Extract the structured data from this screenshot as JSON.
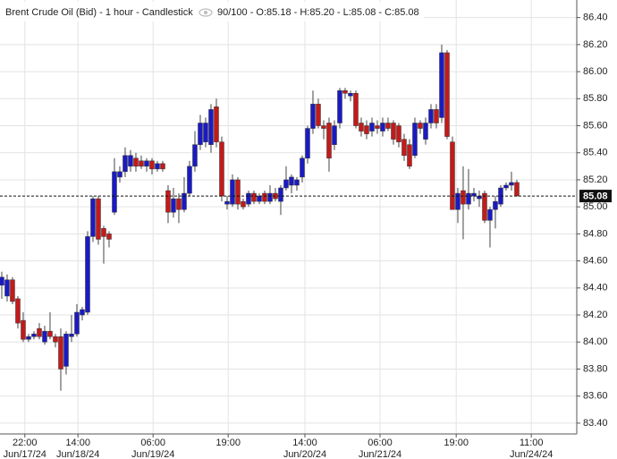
{
  "chart_data": {
    "type": "candlestick",
    "title": "Brent Crude Oil (Bid) - 1 hour - Candlestick",
    "subtitle": "90/100 - O:85.18 - H:85.20 - L:85.08 - C:85.08",
    "up_color": "#1a1ac4",
    "down_color": "#c41a1a",
    "grid": true,
    "last_price": 85.08,
    "ylim": [
      83.32,
      86.53
    ],
    "yticks": [
      {
        "value": 83.4,
        "label": "83.40"
      },
      {
        "value": 83.6,
        "label": "83.60"
      },
      {
        "value": 83.8,
        "label": "83.80"
      },
      {
        "value": 84.0,
        "label": "84.00"
      },
      {
        "value": 84.2,
        "label": "84.20"
      },
      {
        "value": 84.4,
        "label": "84.40"
      },
      {
        "value": 84.6,
        "label": "84.60"
      },
      {
        "value": 84.8,
        "label": "84.80"
      },
      {
        "value": 85.0,
        "label": "85.00"
      },
      {
        "value": 85.2,
        "label": "85.20"
      },
      {
        "value": 85.4,
        "label": "85.40"
      },
      {
        "value": 85.6,
        "label": "85.60"
      },
      {
        "value": 85.8,
        "label": "85.80"
      },
      {
        "value": 86.0,
        "label": "86.00"
      },
      {
        "value": 86.2,
        "label": "86.20"
      },
      {
        "value": 86.4,
        "label": "86.40"
      }
    ],
    "xlim": [
      -0.33,
      107.17
    ],
    "xticks": [
      {
        "value": 4.3,
        "label": "22:00",
        "date": "Jun/17/24"
      },
      {
        "value": 14.2,
        "label": "14:00",
        "date": "Jun/18/24"
      },
      {
        "value": 28.2,
        "label": "06:00",
        "date": "Jun/19/24"
      },
      {
        "value": 42.2,
        "label": "19:00"
      },
      {
        "value": 56.5,
        "label": "14:00",
        "date": "Jun/20/24"
      },
      {
        "value": 70.5,
        "label": "06:00",
        "date": "Jun/21/24"
      },
      {
        "value": 84.7,
        "label": "19:00"
      },
      {
        "value": 98.7,
        "label": "11:00",
        "date": "Jun/24/24"
      }
    ],
    "candles": [
      {
        "open": 84.42,
        "high": 84.52,
        "low": 84.32,
        "close": 84.48
      },
      {
        "open": 84.34,
        "high": 84.5,
        "low": 84.3,
        "close": 84.46
      },
      {
        "open": 84.46,
        "high": 84.48,
        "low": 84.28,
        "close": 84.3
      },
      {
        "open": 84.32,
        "high": 84.34,
        "low": 84.1,
        "close": 84.14
      },
      {
        "open": 84.16,
        "high": 84.22,
        "low": 84.0,
        "close": 84.02
      },
      {
        "open": 84.02,
        "high": 84.06,
        "low": 84.0,
        "close": 84.04
      },
      {
        "open": 84.04,
        "high": 84.08,
        "low": 84.02,
        "close": 84.06
      },
      {
        "open": 84.1,
        "high": 84.14,
        "low": 84.02,
        "close": 84.04
      },
      {
        "open": 84.0,
        "high": 84.12,
        "low": 83.98,
        "close": 84.08
      },
      {
        "open": 84.08,
        "high": 84.22,
        "low": 84.02,
        "close": 84.04
      },
      {
        "open": 84.04,
        "high": 84.06,
        "low": 83.96,
        "close": 84.0
      },
      {
        "open": 84.04,
        "high": 84.1,
        "low": 83.64,
        "close": 83.8
      },
      {
        "open": 83.82,
        "high": 84.08,
        "low": 83.76,
        "close": 84.06
      },
      {
        "open": 84.04,
        "high": 84.2,
        "low": 84.0,
        "close": 84.06
      },
      {
        "open": 84.06,
        "high": 84.28,
        "low": 84.04,
        "close": 84.22
      },
      {
        "open": 84.2,
        "high": 84.26,
        "low": 84.16,
        "close": 84.24
      },
      {
        "open": 84.22,
        "high": 84.82,
        "low": 84.2,
        "close": 84.78
      },
      {
        "open": 84.78,
        "high": 85.08,
        "low": 84.74,
        "close": 85.06
      },
      {
        "open": 85.06,
        "high": 85.08,
        "low": 84.72,
        "close": 84.76
      },
      {
        "open": 84.84,
        "high": 84.86,
        "low": 84.58,
        "close": 84.78
      },
      {
        "open": 84.8,
        "high": 84.82,
        "low": 84.7,
        "close": 84.76
      },
      {
        "open": 84.96,
        "high": 85.36,
        "low": 84.94,
        "close": 85.26
      },
      {
        "open": 85.22,
        "high": 85.3,
        "low": 85.18,
        "close": 85.26
      },
      {
        "open": 85.26,
        "high": 85.44,
        "low": 85.22,
        "close": 85.38
      },
      {
        "open": 85.3,
        "high": 85.42,
        "low": 85.26,
        "close": 85.38
      },
      {
        "open": 85.36,
        "high": 85.4,
        "low": 85.26,
        "close": 85.3
      },
      {
        "open": 85.34,
        "high": 85.38,
        "low": 85.28,
        "close": 85.3
      },
      {
        "open": 85.3,
        "high": 85.36,
        "low": 85.26,
        "close": 85.34
      },
      {
        "open": 85.34,
        "high": 85.36,
        "low": 85.24,
        "close": 85.28
      },
      {
        "open": 85.28,
        "high": 85.34,
        "low": 85.26,
        "close": 85.32
      },
      {
        "open": 85.32,
        "high": 85.34,
        "low": 85.26,
        "close": 85.28
      },
      {
        "open": 85.12,
        "high": 85.16,
        "low": 84.88,
        "close": 84.96
      },
      {
        "open": 84.96,
        "high": 85.14,
        "low": 84.92,
        "close": 85.06
      },
      {
        "open": 85.06,
        "high": 85.1,
        "low": 84.88,
        "close": 84.98
      },
      {
        "open": 84.98,
        "high": 85.22,
        "low": 84.96,
        "close": 85.1
      },
      {
        "open": 85.1,
        "high": 85.34,
        "low": 85.08,
        "close": 85.3
      },
      {
        "open": 85.3,
        "high": 85.56,
        "low": 85.26,
        "close": 85.46
      },
      {
        "open": 85.46,
        "high": 85.68,
        "low": 85.42,
        "close": 85.62
      },
      {
        "open": 85.48,
        "high": 85.66,
        "low": 85.44,
        "close": 85.62
      },
      {
        "open": 85.46,
        "high": 85.76,
        "low": 85.4,
        "close": 85.72
      },
      {
        "open": 85.74,
        "high": 85.8,
        "low": 85.44,
        "close": 85.48
      },
      {
        "open": 85.48,
        "high": 85.52,
        "low": 85.04,
        "close": 85.08
      },
      {
        "open": 85.02,
        "high": 85.08,
        "low": 84.98,
        "close": 85.04
      },
      {
        "open": 85.02,
        "high": 85.24,
        "low": 85.0,
        "close": 85.2
      },
      {
        "open": 85.2,
        "high": 85.22,
        "low": 84.98,
        "close": 85.02
      },
      {
        "open": 85.04,
        "high": 85.06,
        "low": 84.98,
        "close": 85.0
      },
      {
        "open": 85.02,
        "high": 85.12,
        "low": 85.0,
        "close": 85.1
      },
      {
        "open": 85.1,
        "high": 85.12,
        "low": 85.02,
        "close": 85.04
      },
      {
        "open": 85.04,
        "high": 85.1,
        "low": 85.02,
        "close": 85.08
      },
      {
        "open": 85.1,
        "high": 85.12,
        "low": 85.02,
        "close": 85.04
      },
      {
        "open": 85.04,
        "high": 85.16,
        "low": 85.02,
        "close": 85.1
      },
      {
        "open": 85.1,
        "high": 85.14,
        "low": 85.04,
        "close": 85.06
      },
      {
        "open": 85.04,
        "high": 85.16,
        "low": 84.94,
        "close": 85.14
      },
      {
        "open": 85.14,
        "high": 85.3,
        "low": 85.12,
        "close": 85.2
      },
      {
        "open": 85.16,
        "high": 85.24,
        "low": 85.1,
        "close": 85.22
      },
      {
        "open": 85.16,
        "high": 85.22,
        "low": 85.12,
        "close": 85.2
      },
      {
        "open": 85.22,
        "high": 85.38,
        "low": 85.18,
        "close": 85.36
      },
      {
        "open": 85.36,
        "high": 85.6,
        "low": 85.32,
        "close": 85.58
      },
      {
        "open": 85.58,
        "high": 85.86,
        "low": 85.54,
        "close": 85.76
      },
      {
        "open": 85.76,
        "high": 85.8,
        "low": 85.58,
        "close": 85.6
      },
      {
        "open": 85.6,
        "high": 85.64,
        "low": 85.5,
        "close": 85.58
      },
      {
        "open": 85.62,
        "high": 85.66,
        "low": 85.26,
        "close": 85.36
      },
      {
        "open": 85.46,
        "high": 85.64,
        "low": 85.42,
        "close": 85.6
      },
      {
        "open": 85.62,
        "high": 85.88,
        "low": 85.58,
        "close": 85.86
      },
      {
        "open": 85.86,
        "high": 85.88,
        "low": 85.8,
        "close": 85.84
      },
      {
        "open": 85.82,
        "high": 85.86,
        "low": 85.78,
        "close": 85.84
      },
      {
        "open": 85.84,
        "high": 85.86,
        "low": 85.58,
        "close": 85.6
      },
      {
        "open": 85.62,
        "high": 85.66,
        "low": 85.52,
        "close": 85.56
      },
      {
        "open": 85.6,
        "high": 85.64,
        "low": 85.5,
        "close": 85.54
      },
      {
        "open": 85.56,
        "high": 85.66,
        "low": 85.52,
        "close": 85.62
      },
      {
        "open": 85.6,
        "high": 85.64,
        "low": 85.54,
        "close": 85.58
      },
      {
        "open": 85.56,
        "high": 85.66,
        "low": 85.52,
        "close": 85.62
      },
      {
        "open": 85.62,
        "high": 85.66,
        "low": 85.56,
        "close": 85.58
      },
      {
        "open": 85.62,
        "high": 85.64,
        "low": 85.46,
        "close": 85.5
      },
      {
        "open": 85.6,
        "high": 85.62,
        "low": 85.44,
        "close": 85.48
      },
      {
        "open": 85.5,
        "high": 85.54,
        "low": 85.34,
        "close": 85.38
      },
      {
        "open": 85.46,
        "high": 85.5,
        "low": 85.28,
        "close": 85.3
      },
      {
        "open": 85.38,
        "high": 85.66,
        "low": 85.36,
        "close": 85.62
      },
      {
        "open": 85.62,
        "high": 85.64,
        "low": 85.54,
        "close": 85.58
      },
      {
        "open": 85.5,
        "high": 85.66,
        "low": 85.46,
        "close": 85.62
      },
      {
        "open": 85.62,
        "high": 85.76,
        "low": 85.58,
        "close": 85.72
      },
      {
        "open": 85.72,
        "high": 85.76,
        "low": 85.58,
        "close": 85.62
      },
      {
        "open": 85.66,
        "high": 86.2,
        "low": 85.62,
        "close": 86.14
      },
      {
        "open": 86.14,
        "high": 86.16,
        "low": 85.5,
        "close": 85.52
      },
      {
        "open": 85.48,
        "high": 85.52,
        "low": 84.98,
        "close": 84.98
      },
      {
        "open": 84.98,
        "high": 85.14,
        "low": 84.88,
        "close": 85.1
      },
      {
        "open": 85.12,
        "high": 85.3,
        "low": 84.76,
        "close": 85.02
      },
      {
        "open": 85.02,
        "high": 85.28,
        "low": 84.98,
        "close": 85.1
      },
      {
        "open": 85.08,
        "high": 85.14,
        "low": 85.04,
        "close": 85.1
      },
      {
        "open": 85.06,
        "high": 85.12,
        "low": 85.0,
        "close": 85.08
      },
      {
        "open": 85.1,
        "high": 85.12,
        "low": 84.88,
        "close": 84.9
      },
      {
        "open": 84.9,
        "high": 85.0,
        "low": 84.7,
        "close": 84.98
      },
      {
        "open": 84.98,
        "high": 85.08,
        "low": 84.84,
        "close": 85.04
      },
      {
        "open": 85.02,
        "high": 85.16,
        "low": 85.0,
        "close": 85.14
      },
      {
        "open": 85.14,
        "high": 85.18,
        "low": 85.12,
        "close": 85.16
      },
      {
        "open": 85.16,
        "high": 85.26,
        "low": 85.12,
        "close": 85.18
      },
      {
        "open": 85.18,
        "high": 85.2,
        "low": 85.08,
        "close": 85.08
      }
    ]
  }
}
